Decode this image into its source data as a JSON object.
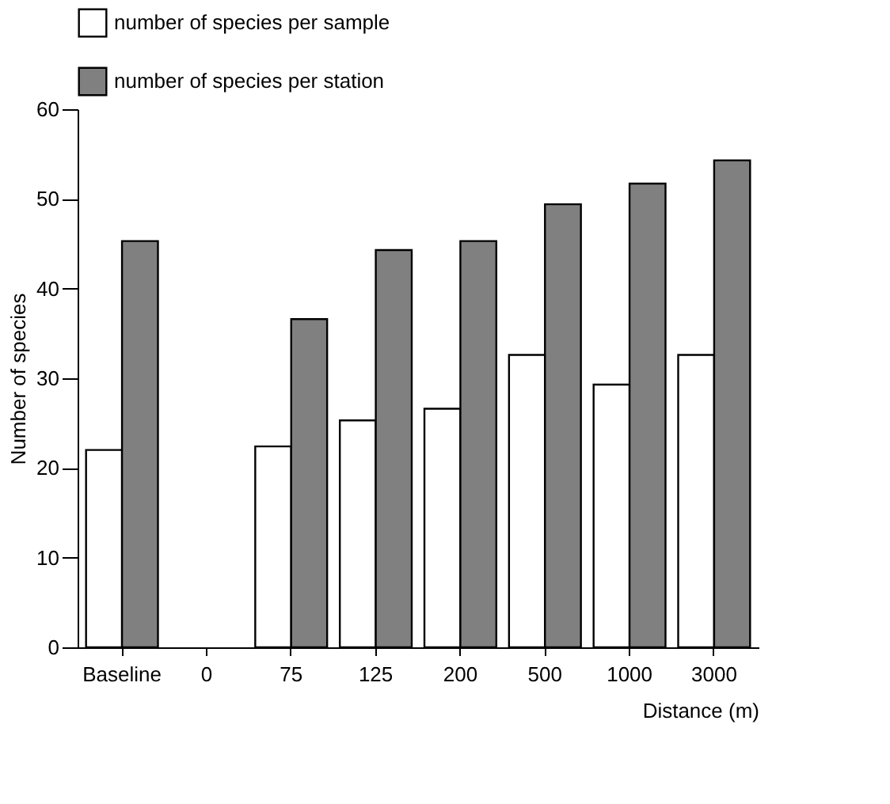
{
  "chart_data": {
    "type": "bar",
    "xlabel": "Distance (m)",
    "ylabel": "Number of species",
    "categories": [
      "Baseline",
      "0",
      "75",
      "125",
      "200",
      "500",
      "1000",
      "3000"
    ],
    "series": [
      {
        "name": "number of species per sample",
        "color": "#ffffff",
        "values": [
          22,
          null,
          22.4,
          25.3,
          26.6,
          32.6,
          29.3,
          32.6
        ]
      },
      {
        "name": "number of species per station",
        "color": "#808080",
        "values": [
          45.3,
          null,
          36.6,
          44.3,
          45.3,
          49.4,
          51.7,
          54.3
        ]
      }
    ],
    "ylim": [
      0,
      60
    ],
    "yticks": [
      0,
      10,
      20,
      30,
      40,
      50,
      60
    ],
    "legend": "top",
    "grid": false
  }
}
